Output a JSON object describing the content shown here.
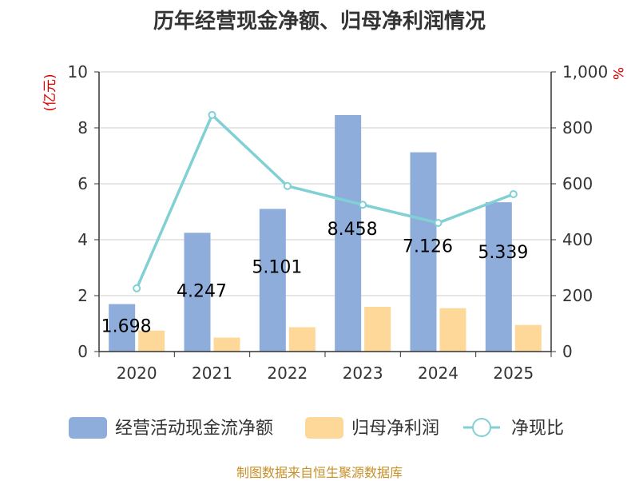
{
  "chart_data": {
    "type": "bar",
    "title": "历年经营现金净额、归母净利润情况",
    "categories": [
      "2020",
      "2021",
      "2022",
      "2023",
      "2024",
      "2025"
    ],
    "series": [
      {
        "name": "经营活动现金流净额",
        "axis": "left",
        "kind": "bar",
        "color": "#8eaddb",
        "values": [
          1.698,
          4.247,
          5.101,
          8.458,
          7.126,
          5.339
        ],
        "labels": [
          "1.698",
          "4.247",
          "5.101",
          "8.458",
          "7.126",
          "5.339"
        ]
      },
      {
        "name": "归母净利润",
        "axis": "left",
        "kind": "bar",
        "color": "#fdd899",
        "values": [
          0.75,
          0.5,
          0.87,
          1.6,
          1.55,
          0.95
        ]
      },
      {
        "name": "净现比",
        "axis": "right",
        "kind": "line",
        "color": "#80d0d4",
        "values": [
          226,
          846,
          592,
          525,
          460,
          563
        ]
      }
    ],
    "left_axis": {
      "unit": "(亿元)",
      "ylim": [
        0,
        10
      ],
      "ticks": [
        "0",
        "2",
        "4",
        "6",
        "8",
        "10"
      ]
    },
    "right_axis": {
      "unit": "%",
      "ylim": [
        0,
        1000
      ],
      "ticks": [
        "0",
        "200",
        "400",
        "600",
        "800",
        "1,000"
      ]
    },
    "grid": true,
    "legend_position": "bottom"
  },
  "source": "制图数据来自恒生聚源数据库"
}
